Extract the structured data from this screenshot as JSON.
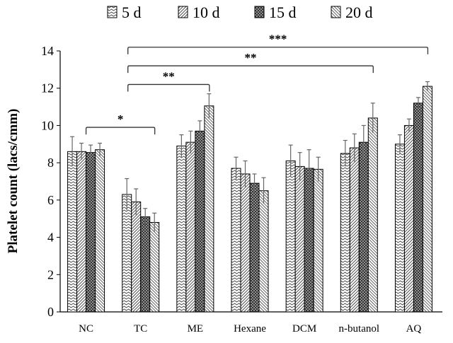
{
  "chart_data": {
    "type": "bar",
    "title": "",
    "xlabel": "",
    "ylabel": "Platelet count (lacs/cmm)",
    "ylim": [
      0,
      14
    ],
    "yticks": [
      0,
      2,
      4,
      6,
      8,
      10,
      12,
      14
    ],
    "grid": false,
    "legend_placement": "top",
    "categories": [
      "NC",
      "TC",
      "ME",
      "Hexane",
      "DCM",
      "n-butanol",
      "AQ"
    ],
    "series": [
      {
        "name": "5 d",
        "pattern": "wave",
        "values": [
          8.6,
          6.3,
          8.9,
          7.7,
          8.1,
          8.5,
          9.0
        ],
        "errors": [
          0.8,
          0.85,
          0.6,
          0.6,
          0.85,
          0.7,
          0.5
        ]
      },
      {
        "name": "10 d",
        "pattern": "diagonal-dense",
        "values": [
          8.6,
          5.9,
          9.1,
          7.4,
          7.8,
          8.8,
          10.0
        ],
        "errors": [
          0.45,
          0.7,
          0.6,
          0.7,
          0.75,
          0.75,
          0.35
        ]
      },
      {
        "name": "15 d",
        "pattern": "dots",
        "values": [
          8.55,
          5.1,
          9.7,
          6.9,
          7.7,
          9.1,
          11.2
        ],
        "errors": [
          0.4,
          0.45,
          0.55,
          0.5,
          1.0,
          0.9,
          0.3
        ]
      },
      {
        "name": "20 d",
        "pattern": "diagonal",
        "values": [
          8.7,
          4.8,
          11.05,
          6.5,
          7.65,
          10.4,
          12.1
        ],
        "errors": [
          0.35,
          0.5,
          0.65,
          0.7,
          0.65,
          0.8,
          0.25
        ]
      }
    ],
    "annotations": [
      {
        "from": "NC",
        "to": "TC",
        "label": "*",
        "y": 9.9
      },
      {
        "from": "TC",
        "to": "ME",
        "label": "**",
        "y": 12.2
      },
      {
        "from": "TC",
        "to": "n-butanol",
        "label": "**",
        "y": 13.2
      },
      {
        "from": "TC",
        "to": "AQ",
        "label": "***",
        "y": 14.2
      }
    ]
  }
}
